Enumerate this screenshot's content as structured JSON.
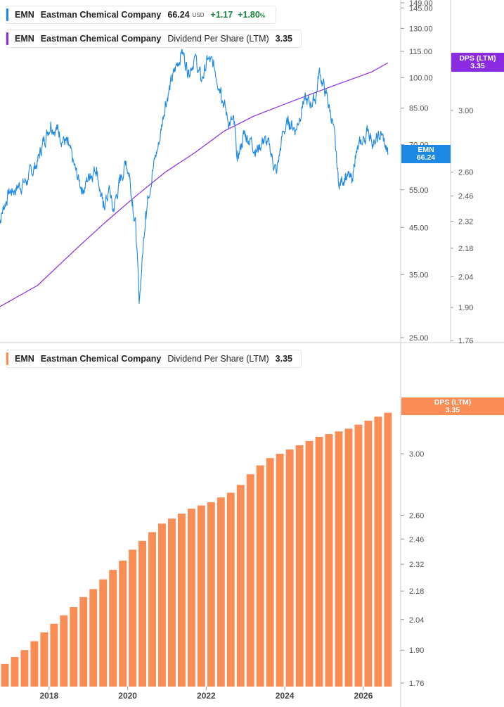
{
  "top_legend": {
    "price": {
      "ticker": "EMN",
      "company": "Eastman Chemical Company",
      "value": "66.24",
      "currency": "USD",
      "change": "+1.17",
      "change_pct": "+1.80",
      "pct_sign": "%"
    },
    "dps": {
      "ticker": "EMN",
      "company": "Eastman Chemical Company",
      "metric": "Dividend Per Share (LTM)",
      "value": "3.35"
    }
  },
  "bottom_legend": {
    "ticker": "EMN",
    "company": "Eastman Chemical Company",
    "metric": "Dividend Per Share (LTM)",
    "value": "3.35"
  },
  "tags": {
    "price": {
      "line1": "EMN",
      "line2": "66.24"
    },
    "dps_top": {
      "line1": "DPS (LTM)",
      "line2": "3.35"
    },
    "dps_bottom": {
      "line1": "DPS (LTM)",
      "line2": "3.35"
    }
  },
  "colors": {
    "price": "#1e88e5",
    "dps_line": "#8a2be2",
    "bars": "#fa8c55",
    "axis": "#555555"
  },
  "chart_data": [
    {
      "type": "line",
      "series": [
        {
          "name": "EMN",
          "x": [
            "2016-09",
            "2016-12",
            "2017-03",
            "2017-06",
            "2017-09",
            "2017-11",
            "2018-01",
            "2018-03",
            "2018-06",
            "2018-09",
            "2018-11",
            "2019-01",
            "2019-03",
            "2019-05",
            "2019-07",
            "2019-08",
            "2019-10",
            "2019-12",
            "2020-01",
            "2020-02",
            "2020-03",
            "2020-04",
            "2020-06",
            "2020-08",
            "2020-10",
            "2020-12",
            "2021-02",
            "2021-05",
            "2021-07",
            "2021-09",
            "2021-11",
            "2022-01",
            "2022-03",
            "2022-05",
            "2022-07",
            "2022-09",
            "2022-10",
            "2022-12",
            "2023-02",
            "2023-04",
            "2023-06",
            "2023-08",
            "2023-10",
            "2023-12",
            "2024-02",
            "2024-04",
            "2024-06",
            "2024-08",
            "2024-10",
            "2024-11",
            "2025-01",
            "2025-03",
            "2025-04",
            "2025-05",
            "2025-07",
            "2025-09",
            "2025-10",
            "2025-12",
            "2026-02",
            "2026-04",
            "2026-06",
            "2026-08"
          ],
          "values": [
            46,
            54,
            56,
            58,
            64,
            72,
            79,
            76,
            70,
            59,
            55,
            60,
            62,
            50,
            55,
            49,
            57,
            64,
            60,
            52,
            45,
            30,
            49,
            61,
            70,
            88,
            98,
            116,
            104,
            112,
            98,
            110,
            105,
            95,
            80,
            78,
            64,
            74,
            72,
            68,
            72,
            68,
            60,
            75,
            79,
            76,
            88,
            87,
            90,
            104,
            92,
            80,
            68,
            56,
            60,
            57,
            66,
            70,
            76,
            70,
            74,
            66.24
          ]
        },
        {
          "name": "Dividend Per Share (LTM)",
          "x": [
            "2016-09",
            "2017-09",
            "2018-09",
            "2019-06",
            "2020-03",
            "2020-12",
            "2021-09",
            "2022-06",
            "2023-03",
            "2023-12",
            "2024-09",
            "2025-06",
            "2026-03",
            "2026-08"
          ],
          "values": [
            1.9,
            2.0,
            2.18,
            2.32,
            2.46,
            2.6,
            2.72,
            2.86,
            2.96,
            3.04,
            3.12,
            3.2,
            3.28,
            3.35
          ]
        }
      ],
      "y_left_ticks": [
        "25.00",
        "35.00",
        "45.00",
        "55.00",
        "70.00",
        "85.00",
        "100.00",
        "115.00",
        "130.00",
        "145.00",
        "149.00"
      ],
      "y_right_ticks": [
        "1.76",
        "1.90",
        "2.04",
        "2.18",
        "2.32",
        "2.46",
        "2.60",
        "3.00"
      ],
      "log_scale": true
    },
    {
      "type": "bar",
      "series": [
        {
          "name": "Dividend Per Share (LTM)",
          "x": [
            "2016-Q4",
            "2017-Q1",
            "2017-Q2",
            "2017-Q3",
            "2017-Q4",
            "2018-Q1",
            "2018-Q2",
            "2018-Q3",
            "2018-Q4",
            "2019-Q1",
            "2019-Q2",
            "2019-Q3",
            "2019-Q4",
            "2020-Q1",
            "2020-Q2",
            "2020-Q3",
            "2020-Q4",
            "2021-Q1",
            "2021-Q2",
            "2021-Q3",
            "2021-Q4",
            "2022-Q1",
            "2022-Q2",
            "2022-Q3",
            "2022-Q4",
            "2023-Q1",
            "2023-Q2",
            "2023-Q3",
            "2023-Q4",
            "2024-Q1",
            "2024-Q2",
            "2024-Q3",
            "2024-Q4",
            "2025-Q1",
            "2025-Q2",
            "2025-Q3",
            "2025-Q4",
            "2026-Q1",
            "2026-Q2",
            "2026-Q3"
          ],
          "values": [
            1.84,
            1.87,
            1.9,
            1.94,
            1.98,
            2.02,
            2.06,
            2.1,
            2.15,
            2.19,
            2.24,
            2.29,
            2.34,
            2.4,
            2.45,
            2.5,
            2.55,
            2.58,
            2.61,
            2.64,
            2.66,
            2.68,
            2.71,
            2.74,
            2.79,
            2.86,
            2.92,
            2.97,
            3.0,
            3.03,
            3.06,
            3.09,
            3.12,
            3.14,
            3.16,
            3.18,
            3.21,
            3.24,
            3.27,
            3.3
          ]
        }
      ],
      "x_ticks": [
        "2018",
        "2020",
        "2022",
        "2024",
        "2026"
      ],
      "y_ticks": [
        "1.76",
        "1.90",
        "2.04",
        "2.18",
        "2.32",
        "2.46",
        "2.60",
        "3.00"
      ]
    }
  ]
}
